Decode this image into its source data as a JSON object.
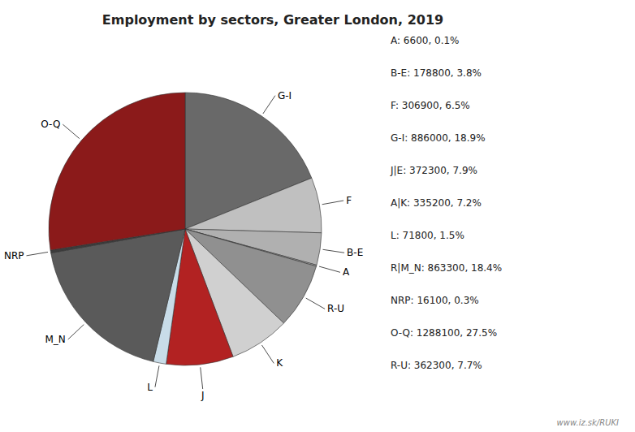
{
  "chart_data": {
    "type": "pie",
    "title": "Employment by sectors, Greater London, 2019",
    "categories": [
      "G-I",
      "F",
      "B-E",
      "A",
      "R-U",
      "K",
      "J",
      "L",
      "M_N",
      "NRP",
      "O-Q"
    ],
    "values": [
      886000,
      306900,
      178800,
      6600,
      362300,
      335200,
      372300,
      71800,
      863300,
      16100,
      1288100
    ],
    "colors": [
      "#696969",
      "#c0c0c0",
      "#b0b0b0",
      "#b0b0b0",
      "#909090",
      "#d0d0d0",
      "#b22222",
      "#c8dce8",
      "#5a5a5a",
      "#3c3c3c",
      "#8b1a1a"
    ],
    "annotations": [
      "A: 6600, 0.1%",
      "B-E: 178800, 3.8%",
      "F: 306900, 6.5%",
      "G-I: 886000, 18.9%",
      "J|E: 372300, 7.9%",
      "A|K: 335200, 7.2%",
      "L: 71800, 1.5%",
      "R|M_N: 863300, 18.4%",
      "NRP: 16100, 0.3%",
      "O-Q: 1288100, 27.5%",
      "R-U: 362300, 7.7%",
      "www.iz.sk/RUKI"
    ]
  }
}
